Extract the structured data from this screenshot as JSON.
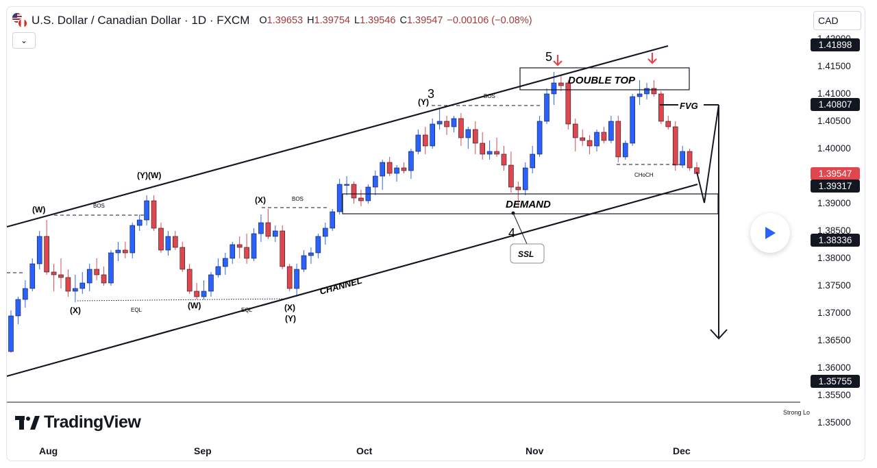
{
  "header": {
    "symbol": "U.S. Dollar / Canadian Dollar · 1D · FXCM",
    "o_key": "O",
    "o_val": "1.39653",
    "h_key": "H",
    "h_val": "1.39754",
    "l_key": "L",
    "l_val": "1.39546",
    "c_key": "C",
    "c_val": "1.39547",
    "change": "−0.00106 (−0.08%)"
  },
  "currency": "CAD",
  "price_axis": {
    "ticks": [
      "1.42000",
      "1.41500",
      "1.41000",
      "1.40500",
      "1.40000",
      "1.39500",
      "1.39000",
      "1.38500",
      "1.38000",
      "1.37500",
      "1.37000",
      "1.36500",
      "1.36000",
      "1.35500",
      "1.35000"
    ],
    "badges": [
      {
        "label": "1.41898",
        "price": 1.41898,
        "style": "dark"
      },
      {
        "label": "1.40807",
        "price": 1.40807,
        "style": "dark"
      },
      {
        "label": "1.39547",
        "price": 1.39547,
        "style": "red"
      },
      {
        "label": "1.39317",
        "price": 1.39317,
        "style": "dark"
      },
      {
        "label": "1.38336",
        "price": 1.38336,
        "style": "dark"
      },
      {
        "label": "1.35755",
        "price": 1.35755,
        "style": "dark"
      }
    ]
  },
  "time_axis": [
    "Aug",
    "Sep",
    "Oct",
    "Nov",
    "Dec"
  ],
  "branding": {
    "logo_text": "TradingView",
    "note": "Strong Lo"
  },
  "colors": {
    "up": "#2962ff",
    "down": "#e0464e",
    "wick_up": "#2962ff",
    "wick_down": "#e0464e"
  },
  "chart_data": {
    "type": "candlestick",
    "title": "U.S. Dollar / Canadian Dollar · 1D · FXCM",
    "ylim": [
      1.35,
      1.42
    ],
    "x_labels": [
      "Aug",
      "Sep",
      "Oct",
      "Nov",
      "Dec"
    ],
    "candles": [
      [
        1.363,
        1.3705,
        1.3628,
        1.3695
      ],
      [
        1.3695,
        1.373,
        1.368,
        1.3725
      ],
      [
        1.3725,
        1.376,
        1.371,
        1.3745
      ],
      [
        1.3745,
        1.38,
        1.374,
        1.379
      ],
      [
        1.379,
        1.385,
        1.378,
        1.384
      ],
      [
        1.384,
        1.387,
        1.377,
        1.3775
      ],
      [
        1.3775,
        1.379,
        1.374,
        1.377
      ],
      [
        1.377,
        1.38,
        1.3745,
        1.3765
      ],
      [
        1.3765,
        1.378,
        1.373,
        1.374
      ],
      [
        1.374,
        1.377,
        1.372,
        1.3745
      ],
      [
        1.3745,
        1.3775,
        1.3735,
        1.3755
      ],
      [
        1.3755,
        1.379,
        1.374,
        1.378
      ],
      [
        1.378,
        1.38,
        1.376,
        1.377
      ],
      [
        1.377,
        1.3785,
        1.375,
        1.3755
      ],
      [
        1.3755,
        1.3815,
        1.375,
        1.381
      ],
      [
        1.381,
        1.383,
        1.3795,
        1.3815
      ],
      [
        1.3815,
        1.383,
        1.38,
        1.381
      ],
      [
        1.381,
        1.3865,
        1.38,
        1.386
      ],
      [
        1.386,
        1.388,
        1.385,
        1.387
      ],
      [
        1.387,
        1.3915,
        1.386,
        1.3905
      ],
      [
        1.3905,
        1.3915,
        1.385,
        1.3855
      ],
      [
        1.3855,
        1.3865,
        1.381,
        1.3815
      ],
      [
        1.3815,
        1.385,
        1.3805,
        1.384
      ],
      [
        1.384,
        1.385,
        1.3815,
        1.382
      ],
      [
        1.382,
        1.383,
        1.3775,
        1.378
      ],
      [
        1.378,
        1.379,
        1.3735,
        1.374
      ],
      [
        1.374,
        1.3755,
        1.3725,
        1.373
      ],
      [
        1.373,
        1.376,
        1.3725,
        1.374
      ],
      [
        1.374,
        1.3775,
        1.373,
        1.377
      ],
      [
        1.377,
        1.38,
        1.3765,
        1.3785
      ],
      [
        1.3785,
        1.381,
        1.377,
        1.38
      ],
      [
        1.38,
        1.383,
        1.379,
        1.3825
      ],
      [
        1.3825,
        1.384,
        1.38,
        1.382
      ],
      [
        1.382,
        1.3845,
        1.379,
        1.38
      ],
      [
        1.38,
        1.3855,
        1.3795,
        1.3845
      ],
      [
        1.3845,
        1.388,
        1.383,
        1.3865
      ],
      [
        1.3865,
        1.389,
        1.3835,
        1.384
      ],
      [
        1.384,
        1.386,
        1.383,
        1.385
      ],
      [
        1.385,
        1.386,
        1.378,
        1.3785
      ],
      [
        1.3785,
        1.379,
        1.374,
        1.3745
      ],
      [
        1.3745,
        1.379,
        1.373,
        1.378
      ],
      [
        1.378,
        1.3815,
        1.3775,
        1.3805
      ],
      [
        1.3805,
        1.382,
        1.379,
        1.381
      ],
      [
        1.381,
        1.3845,
        1.38,
        1.384
      ],
      [
        1.384,
        1.3865,
        1.3825,
        1.3855
      ],
      [
        1.3855,
        1.389,
        1.385,
        1.3885
      ],
      [
        1.3885,
        1.3945,
        1.388,
        1.3935
      ],
      [
        1.3935,
        1.395,
        1.3915,
        1.3935
      ],
      [
        1.3935,
        1.394,
        1.39,
        1.391
      ],
      [
        1.391,
        1.3925,
        1.3895,
        1.3905
      ],
      [
        1.3905,
        1.3935,
        1.39,
        1.393
      ],
      [
        1.393,
        1.396,
        1.3915,
        1.395
      ],
      [
        1.395,
        1.398,
        1.3925,
        1.3975
      ],
      [
        1.3975,
        1.3985,
        1.395,
        1.3955
      ],
      [
        1.3955,
        1.397,
        1.394,
        1.3965
      ],
      [
        1.3965,
        1.3975,
        1.3955,
        1.396
      ],
      [
        1.396,
        1.4,
        1.3945,
        1.3995
      ],
      [
        1.3995,
        1.4035,
        1.399,
        1.4025
      ],
      [
        1.4025,
        1.404,
        1.399,
        1.4005
      ],
      [
        1.4005,
        1.4055,
        1.4,
        1.4045
      ],
      [
        1.4045,
        1.4075,
        1.4035,
        1.405
      ],
      [
        1.405,
        1.406,
        1.4025,
        1.404
      ],
      [
        1.404,
        1.406,
        1.403,
        1.4055
      ],
      [
        1.4055,
        1.4065,
        1.4005,
        1.402
      ],
      [
        1.402,
        1.404,
        1.4,
        1.4035
      ],
      [
        1.4035,
        1.405,
        1.399,
        1.401
      ],
      [
        1.401,
        1.403,
        1.398,
        1.399
      ],
      [
        1.399,
        1.4015,
        1.398,
        1.3995
      ],
      [
        1.3995,
        1.402,
        1.3985,
        1.399
      ],
      [
        1.399,
        1.4005,
        1.396,
        1.397
      ],
      [
        1.397,
        1.3995,
        1.392,
        1.393
      ],
      [
        1.393,
        1.394,
        1.3895,
        1.3925
      ],
      [
        1.3925,
        1.3975,
        1.3915,
        1.3965
      ],
      [
        1.3965,
        1.4005,
        1.3955,
        1.399
      ],
      [
        1.399,
        1.406,
        1.3985,
        1.405
      ],
      [
        1.405,
        1.411,
        1.4045,
        1.41
      ],
      [
        1.41,
        1.414,
        1.408,
        1.412
      ],
      [
        1.412,
        1.4135,
        1.4105,
        1.4115
      ],
      [
        1.412,
        1.4125,
        1.4035,
        1.4045
      ],
      [
        1.4045,
        1.4055,
        1.3995,
        1.402
      ],
      [
        1.402,
        1.4035,
        1.4005,
        1.4015
      ],
      [
        1.4015,
        1.4025,
        1.399,
        1.4005
      ],
      [
        1.4005,
        1.4035,
        1.3995,
        1.403
      ],
      [
        1.403,
        1.404,
        1.401,
        1.4015
      ],
      [
        1.4015,
        1.406,
        1.401,
        1.405
      ],
      [
        1.405,
        1.406,
        1.3975,
        1.3985
      ],
      [
        1.3985,
        1.4015,
        1.398,
        1.401
      ],
      [
        1.401,
        1.41,
        1.4005,
        1.4095
      ],
      [
        1.4095,
        1.4125,
        1.408,
        1.41
      ],
      [
        1.41,
        1.412,
        1.409,
        1.411
      ],
      [
        1.411,
        1.4125,
        1.4095,
        1.41
      ],
      [
        1.41,
        1.4105,
        1.4045,
        1.405
      ],
      [
        1.405,
        1.406,
        1.4035,
        1.404
      ],
      [
        1.404,
        1.405,
        1.396,
        1.397
      ],
      [
        1.397,
        1.4005,
        1.3965,
        1.3995
      ],
      [
        1.3995,
        1.4,
        1.396,
        1.3965
      ],
      [
        1.39653,
        1.39754,
        1.39546,
        1.39547
      ]
    ],
    "annotations": [
      "(W)",
      "BOS",
      "(Y)(W)",
      "(X)",
      "EQL",
      "(W)",
      "EQL",
      "(X)",
      "BOS",
      "(X)",
      "(Y)",
      "3",
      "(Y)",
      "BOS",
      "5",
      "DOUBLE TOP",
      "FVG",
      "CHoCH",
      "DEMAND",
      "4",
      "SSL",
      "CHANNEL"
    ]
  },
  "annotations": {
    "w1": "(W)",
    "bos1": "BOS",
    "yw": "(Y)(W)",
    "x1": "(X)",
    "eql1": "EQL",
    "w2": "(W)",
    "eql2": "EQL",
    "x2": "(X)",
    "x2b": "(Y)",
    "x3": "(X)",
    "bos2": "BOS",
    "n3": "3",
    "y3": "(Y)",
    "bos3": "BOS",
    "n5": "5",
    "dtop": "DOUBLE TOP",
    "fvg": "FVG",
    "choch": "CHoCH",
    "demand": "DEMAND",
    "n4": "4",
    "ssl": "SSL",
    "channel": "CHANNEL"
  }
}
